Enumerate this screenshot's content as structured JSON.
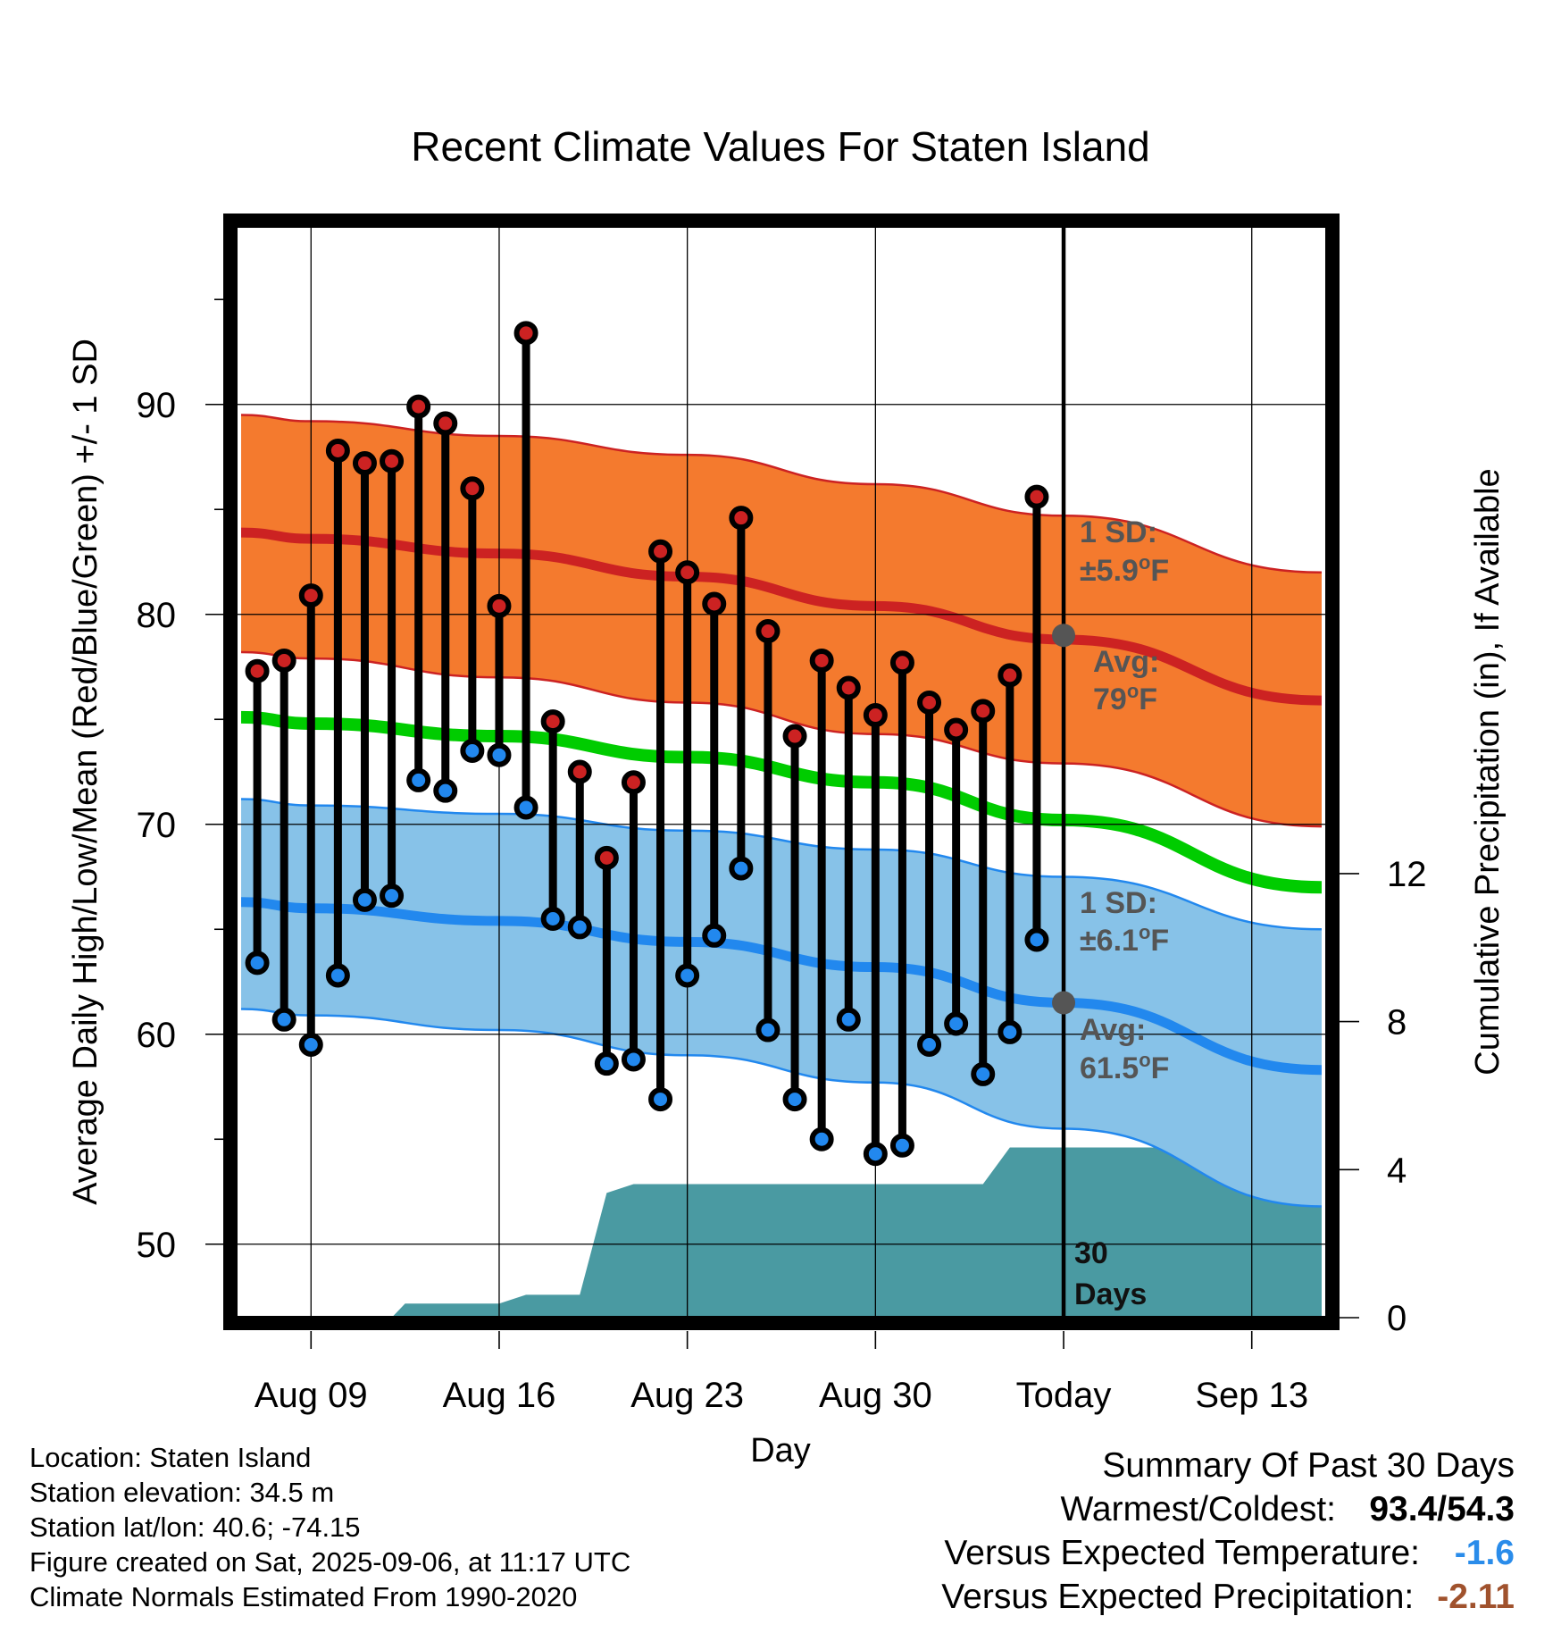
{
  "chart_data": {
    "type": "line",
    "title": "Recent Climate Values For Staten Island",
    "xlabel": "Day",
    "ylabel": "Average Daily High/Low/Mean (Red/Blue/Green) +/- 1 SD",
    "y2label": "Cumulative Precipitation (in), If Available",
    "x_ticks": [
      "Aug 09",
      "Aug 16",
      "Aug 23",
      "Aug 30",
      "Today",
      "Sep 13"
    ],
    "x_tick_days": [
      0,
      7,
      14,
      21,
      28,
      35
    ],
    "xlim": [
      -2.8,
      37.8
    ],
    "ylim": [
      46.5,
      98.5
    ],
    "y_ticks": [
      50,
      60,
      70,
      80,
      90
    ],
    "y2lim": [
      0,
      29.5
    ],
    "y2_ticks": [
      0,
      4,
      8,
      12
    ],
    "today_day": 28,
    "grid": true,
    "colors": {
      "high": "#cc2222",
      "high_band": "#f47a2e",
      "low": "#2288ee",
      "low_band": "#87c2e8",
      "mean": "#00cc00",
      "precip": "#4a9aa2",
      "marker_avg": "#555555"
    },
    "normal_high": {
      "days": [
        -2.6,
        0,
        7,
        14,
        21,
        28,
        37.6
      ],
      "mean": [
        83.9,
        83.6,
        82.9,
        81.8,
        80.4,
        78.8,
        75.9
      ],
      "upper": [
        89.5,
        89.2,
        88.5,
        87.6,
        86.2,
        84.7,
        82.0
      ],
      "lower": [
        78.2,
        77.9,
        77.0,
        75.8,
        74.3,
        72.9,
        69.9
      ]
    },
    "normal_low": {
      "days": [
        -2.6,
        0,
        7,
        14,
        21,
        28,
        37.6
      ],
      "mean": [
        66.3,
        66.0,
        65.4,
        64.4,
        63.2,
        61.5,
        58.3
      ],
      "upper": [
        71.2,
        70.9,
        70.5,
        69.7,
        68.8,
        67.5,
        65.0
      ],
      "lower": [
        61.2,
        60.9,
        60.2,
        59.0,
        57.7,
        55.5,
        51.8
      ]
    },
    "normal_mean": {
      "days": [
        -2.6,
        0,
        7,
        14,
        21,
        28,
        37.6
      ],
      "values": [
        75.1,
        74.8,
        74.2,
        73.2,
        72.0,
        70.2,
        67.0
      ]
    },
    "series": [
      {
        "name": "High",
        "x": [
          -2,
          -1,
          0,
          1,
          2,
          3,
          4,
          5,
          6,
          7,
          8,
          9,
          10,
          11,
          12,
          13,
          14,
          15,
          16,
          17,
          18,
          19,
          20,
          21,
          22,
          23,
          24,
          25,
          26,
          27
        ],
        "values": [
          77.3,
          77.8,
          80.9,
          87.8,
          87.2,
          87.3,
          89.9,
          89.1,
          86.0,
          80.4,
          93.4,
          74.9,
          72.5,
          68.4,
          72.0,
          83.0,
          82.0,
          80.5,
          84.6,
          79.2,
          74.2,
          77.8,
          76.5,
          75.2,
          77.7,
          75.8,
          74.5,
          75.4,
          77.1,
          85.6
        ]
      },
      {
        "name": "Low",
        "x": [
          -2,
          -1,
          0,
          1,
          2,
          3,
          4,
          5,
          6,
          7,
          8,
          9,
          10,
          11,
          12,
          13,
          14,
          15,
          16,
          17,
          18,
          19,
          20,
          21,
          22,
          23,
          24,
          25,
          26,
          27
        ],
        "values": [
          63.4,
          60.7,
          59.5,
          62.8,
          66.4,
          66.6,
          72.1,
          71.6,
          73.5,
          73.3,
          70.8,
          65.5,
          65.1,
          58.6,
          58.8,
          56.9,
          62.8,
          64.7,
          67.9,
          60.2,
          56.9,
          55.0,
          60.7,
          54.3,
          54.7,
          59.5,
          60.5,
          58.1,
          60.1,
          64.5
        ]
      },
      {
        "name": "Precipitation",
        "x": [
          -2.6,
          1,
          2,
          3,
          3.5,
          7,
          8,
          10,
          11,
          12,
          13,
          24,
          25,
          26,
          37.6
        ],
        "values": [
          0,
          0,
          0,
          0,
          0.38,
          0.38,
          0.62,
          0.62,
          3.37,
          3.61,
          3.61,
          3.61,
          3.61,
          4.6,
          4.6
        ]
      }
    ],
    "annotations": {
      "high_sd_label": "1 SD:",
      "high_sd_value": "±5.9",
      "high_avg_label": "Avg:",
      "high_avg_value": "79",
      "low_sd_label": "1 SD:",
      "low_sd_value": "±6.1",
      "low_avg_label": "Avg:",
      "low_avg_value": "61.5",
      "degree_unit": "o",
      "temp_unit": "F",
      "precip_label_line1": "30",
      "precip_label_line2": "Days"
    }
  },
  "info": {
    "location": "Location: Staten Island",
    "elevation": "Station elevation: 34.5 m",
    "latlon": "Station lat/lon: 40.6; -74.15",
    "created": "Figure created on Sat, 2025-09-06, at 11:17 UTC",
    "normals": "Climate Normals Estimated From 1990-2020"
  },
  "summary": {
    "title": "Summary Of Past 30 Days",
    "warm_cold_label": "Warmest/Coldest:",
    "warm_cold_value": "93.4/54.3",
    "temp_label": "Versus Expected Temperature:",
    "temp_value": "-1.6",
    "temp_color": "#2a8cea",
    "precip_label": "Versus Expected Precipitation:",
    "precip_value": "-2.11",
    "precip_color": "#a0522d"
  }
}
